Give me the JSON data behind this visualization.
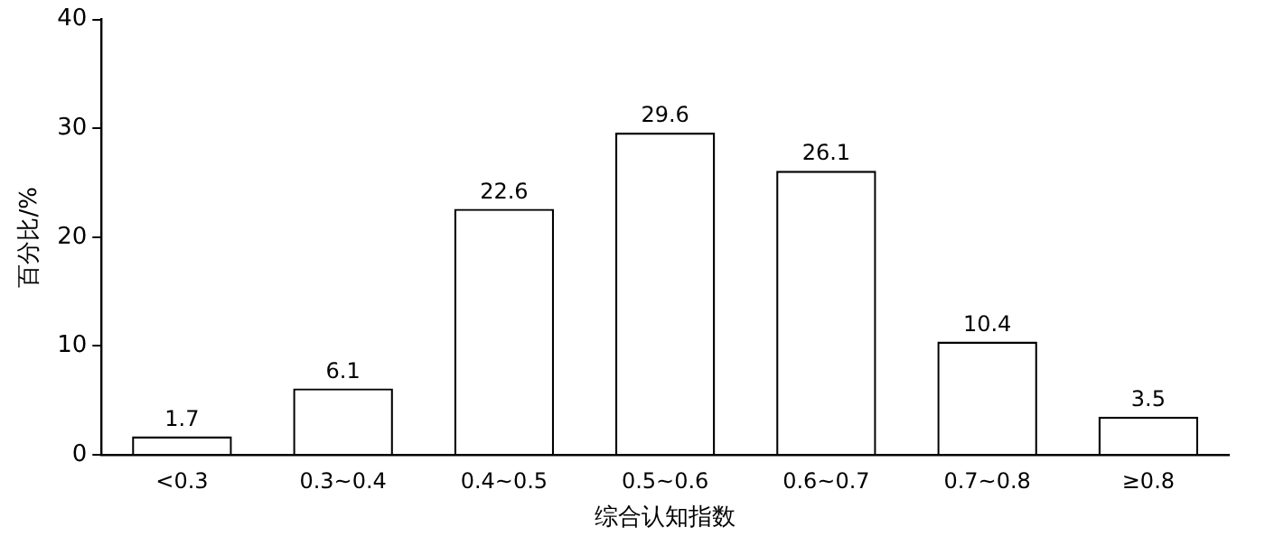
{
  "chart_data": {
    "type": "bar",
    "xlabel": "综合认知指数",
    "ylabel": "百分比/%",
    "categories": [
      "<0.3",
      "0.3~0.4",
      "0.4~0.5",
      "0.5~0.6",
      "0.6~0.7",
      "0.7~0.8",
      "≥0.8"
    ],
    "values": [
      1.7,
      6.1,
      22.6,
      29.6,
      26.1,
      10.4,
      3.5
    ],
    "color": "#ffffff",
    "data_labels": true,
    "ylim": [
      0,
      40
    ],
    "yticks": [
      0,
      10,
      20,
      30,
      40
    ],
    "grid": false,
    "legend": false
  }
}
